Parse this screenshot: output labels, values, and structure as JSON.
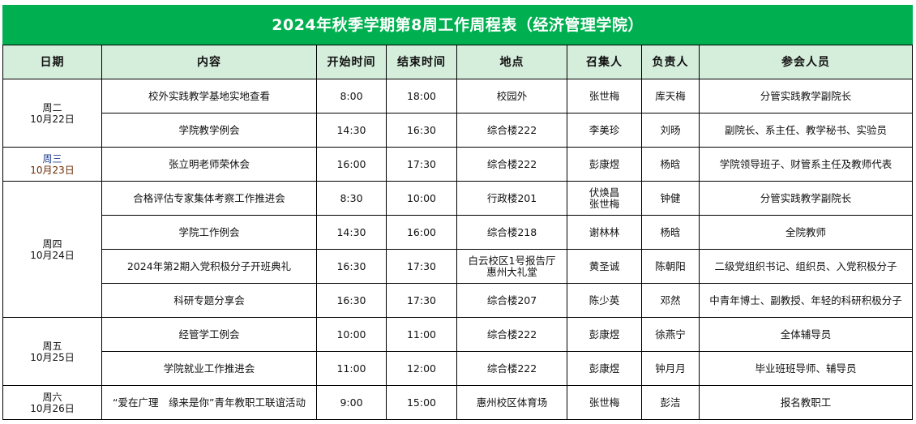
{
  "title": "2024年秋季学期第8周工作周程表（经济管理学院）",
  "headers": [
    "日期",
    "内容",
    "开始时间",
    "结束时间",
    "地点",
    "召集人",
    "负责人",
    "参会人员"
  ],
  "colors": {
    "title_bg": "#00b050",
    "header_bg": "#d5eddb"
  },
  "days": [
    {
      "weekday": "周二",
      "date": "10月22日",
      "rows": [
        {
          "content": "校外实践教学基地实地查看",
          "start": "8:00",
          "end": "18:00",
          "place": "校园外",
          "convener": "张世梅",
          "owner": "库天梅",
          "attendees": "分管实践教学副院长"
        },
        {
          "content": "学院教学例会",
          "start": "14:30",
          "end": "16:30",
          "place": "综合楼222",
          "convener": "李美珍",
          "owner": "刘旸",
          "attendees": "副院长、系主任、教学秘书、实验员"
        }
      ]
    },
    {
      "weekday": "周三",
      "date": "10月23日",
      "rows": [
        {
          "content": "张立明老师荣休会",
          "start": "16:00",
          "end": "17:30",
          "place": "综合楼222",
          "convener": "彭康煜",
          "owner": "杨晗",
          "attendees": "学院领导班子、财管系主任及教师代表"
        }
      ]
    },
    {
      "weekday": "周四",
      "date": "10月24日",
      "rows": [
        {
          "content": "合格评估专家集体考察工作推进会",
          "start": "8:30",
          "end": "10:00",
          "place": "行政楼201",
          "convener": "伏焕昌\n张世梅",
          "owner": "钟健",
          "attendees": "分管实践教学副院长"
        },
        {
          "content": "学院工作例会",
          "start": "14:30",
          "end": "16:00",
          "place": "综合楼218",
          "convener": "谢林林",
          "owner": "杨晗",
          "attendees": "全院教师"
        },
        {
          "content": "2024年第2期入党积极分子开班典礼",
          "start": "16:30",
          "end": "17:30",
          "place": "白云校区1号报告厅\n惠州大礼堂",
          "convener": "黄圣诚",
          "owner": "陈朝阳",
          "attendees": "二级党组织书记、组织员、入党积极分子"
        },
        {
          "content": "科研专题分享会",
          "start": "16:30",
          "end": "17:30",
          "place": "综合楼207",
          "convener": "陈少英",
          "owner": "邓然",
          "attendees": "中青年博士、副教授、年轻的科研积极分子"
        }
      ]
    },
    {
      "weekday": "周五",
      "date": "10月25日",
      "rows": [
        {
          "content": "经管学工例会",
          "start": "10:00",
          "end": "11:00",
          "place": "综合楼222",
          "convener": "彭康煜",
          "owner": "徐燕宁",
          "attendees": "全体辅导员"
        },
        {
          "content": "学院就业工作推进会",
          "start": "11:00",
          "end": "12:00",
          "place": "综合楼222",
          "convener": "彭康煜",
          "owner": "钟月月",
          "attendees": "毕业班班导师、辅导员"
        }
      ]
    },
    {
      "weekday": "周六",
      "date": "10月26日",
      "rows": [
        {
          "content": "“爱在广理　缘来是你”青年教职工联谊活动",
          "start": "9:00",
          "end": "15:00",
          "place": "惠州校区体育场",
          "convener": "张世梅",
          "owner": "彭洁",
          "attendees": "报名教职工"
        }
      ]
    }
  ]
}
